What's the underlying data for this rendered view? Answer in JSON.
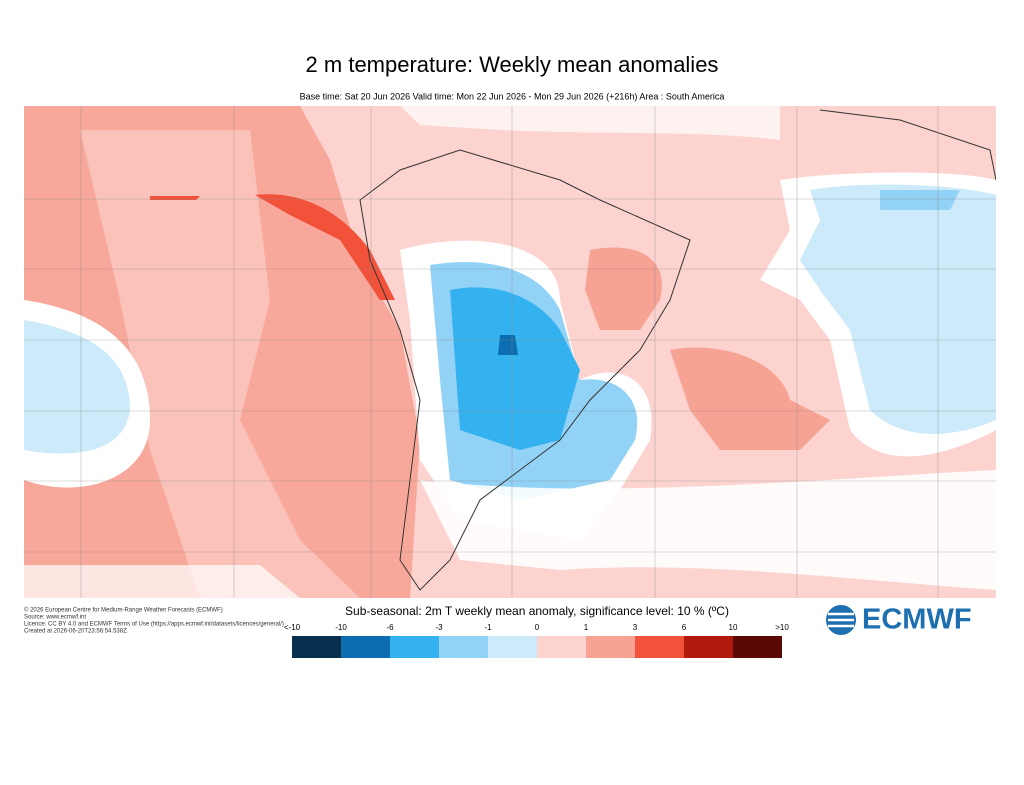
{
  "header": {
    "title": "2 m temperature: Weekly mean anomalies",
    "subtitle": "Base time: Sat 20 Jun 2026 Valid time: Mon 22 Jun 2026 - Mon 29 Jun 2026 (+216h) Area : South America"
  },
  "credits": [
    "© 2026 European Centre for Medium-Range Weather Forecasts (ECMWF)",
    "Source: www.ecmwf.int",
    "Licence: CC BY 4.0 and ECMWF Terms of Use (https://apps.ecmwf.int/datasets/licences/general/)",
    "Created at 2026-06-20T23:56:54.538Z"
  ],
  "legend": {
    "title": "Sub-seasonal: 2m T weekly mean anomaly, significance level: 10 % (ºC)",
    "labels": [
      "<-10",
      "-10",
      "-6",
      "-3",
      "-1",
      "0",
      "1",
      "3",
      "6",
      "10",
      ">10"
    ],
    "colors": [
      "#072f4d",
      "#0c6eb0",
      "#34b2f0",
      "#92d2f6",
      "#cdeafa",
      "#fcd3cf",
      "#f7a393",
      "#f2513a",
      "#b2190d",
      "#5a0904"
    ]
  },
  "logo": "ECMWF"
}
